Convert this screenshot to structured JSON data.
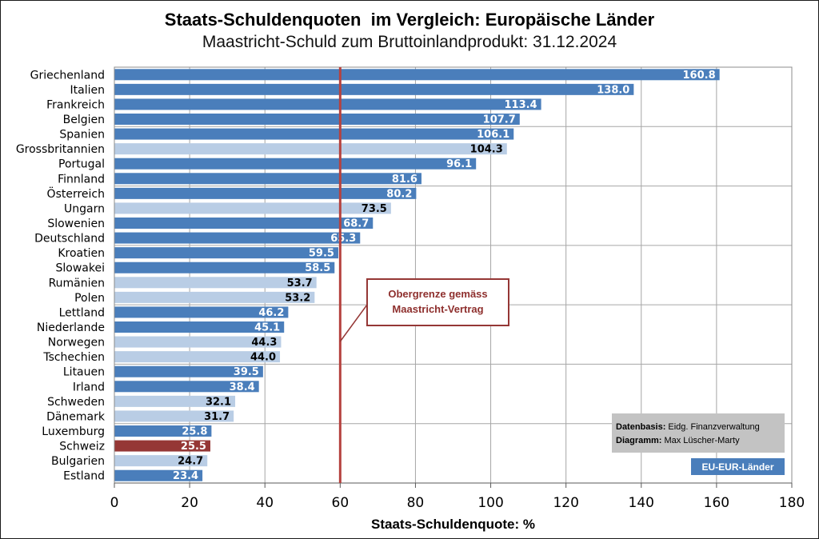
{
  "chart_data": {
    "type": "bar",
    "orientation": "horizontal",
    "title": "Staats-Schuldenquoten  im Vergleich: Europäische Länder",
    "subtitle": "Maastricht-Schuld zum Bruttoinlandprodukt: 31.12.2024",
    "xlabel": "Staats-Schuldenquote: %",
    "xlim": [
      0,
      180
    ],
    "xticks": [
      0,
      20,
      40,
      60,
      80,
      100,
      120,
      140,
      160,
      180
    ],
    "grid": true,
    "categories": [
      "Griechenland",
      "Italien",
      "Frankreich",
      "Belgien",
      "Spanien",
      "Grossbritannien",
      "Portugal",
      "Finnland",
      "Österreich",
      "Ungarn",
      "Slowenien",
      "Deutschland",
      "Kroatien",
      "Slowakei",
      "Rumänien",
      "Polen",
      "Lettland",
      "Niederlande",
      "Norwegen",
      "Tschechien",
      "Litauen",
      "Irland",
      "Schweden",
      "Dänemark",
      "Luxemburg",
      "Schweiz",
      "Bulgarien",
      "Estland"
    ],
    "values": [
      160.8,
      138.0,
      113.4,
      107.7,
      106.1,
      104.3,
      96.1,
      81.6,
      80.2,
      73.5,
      68.7,
      65.3,
      59.5,
      58.5,
      53.7,
      53.2,
      46.2,
      45.1,
      44.3,
      44.0,
      39.5,
      38.4,
      32.1,
      31.7,
      25.8,
      25.5,
      24.7,
      23.4
    ],
    "data_labels": [
      "160.8",
      "138.0",
      "113.4",
      "107.7",
      "106.1",
      "104.3",
      "96.1",
      "81.6",
      "80.2",
      "73.5",
      "68.7",
      "65.3",
      "59.5",
      "58.5",
      "53.7",
      "53.2",
      "46.2",
      "45.1",
      "44.3",
      "44.0",
      "39.5",
      "38.4",
      "32.1",
      "31.7",
      "25.8",
      "25.5",
      "24.7",
      "23.4"
    ],
    "bar_colors": [
      "#4a7ebb",
      "#4a7ebb",
      "#4a7ebb",
      "#4a7ebb",
      "#4a7ebb",
      "#b9cde5",
      "#4a7ebb",
      "#4a7ebb",
      "#4a7ebb",
      "#b9cde5",
      "#4a7ebb",
      "#4a7ebb",
      "#4a7ebb",
      "#4a7ebb",
      "#b9cde5",
      "#b9cde5",
      "#4a7ebb",
      "#4a7ebb",
      "#b9cde5",
      "#b9cde5",
      "#4a7ebb",
      "#4a7ebb",
      "#b9cde5",
      "#b9cde5",
      "#4a7ebb",
      "#953735",
      "#b9cde5",
      "#4a7ebb"
    ],
    "reference_line": {
      "value": 60,
      "color": "#b5423f",
      "label_lines": [
        "Obergrenze gemäss",
        "Maastricht-Vertrag"
      ]
    },
    "legend": {
      "placement": "bottom-right",
      "entries": [
        {
          "label": "EU-EUR-Länder",
          "color": "#4a7ebb"
        }
      ]
    }
  },
  "source_note": {
    "data_label": "Datenbasis:",
    "data_value": "Eidg. Finanzverwaltung",
    "chart_label": "Diagramm:",
    "chart_value": "Max Lüscher-Marty"
  }
}
